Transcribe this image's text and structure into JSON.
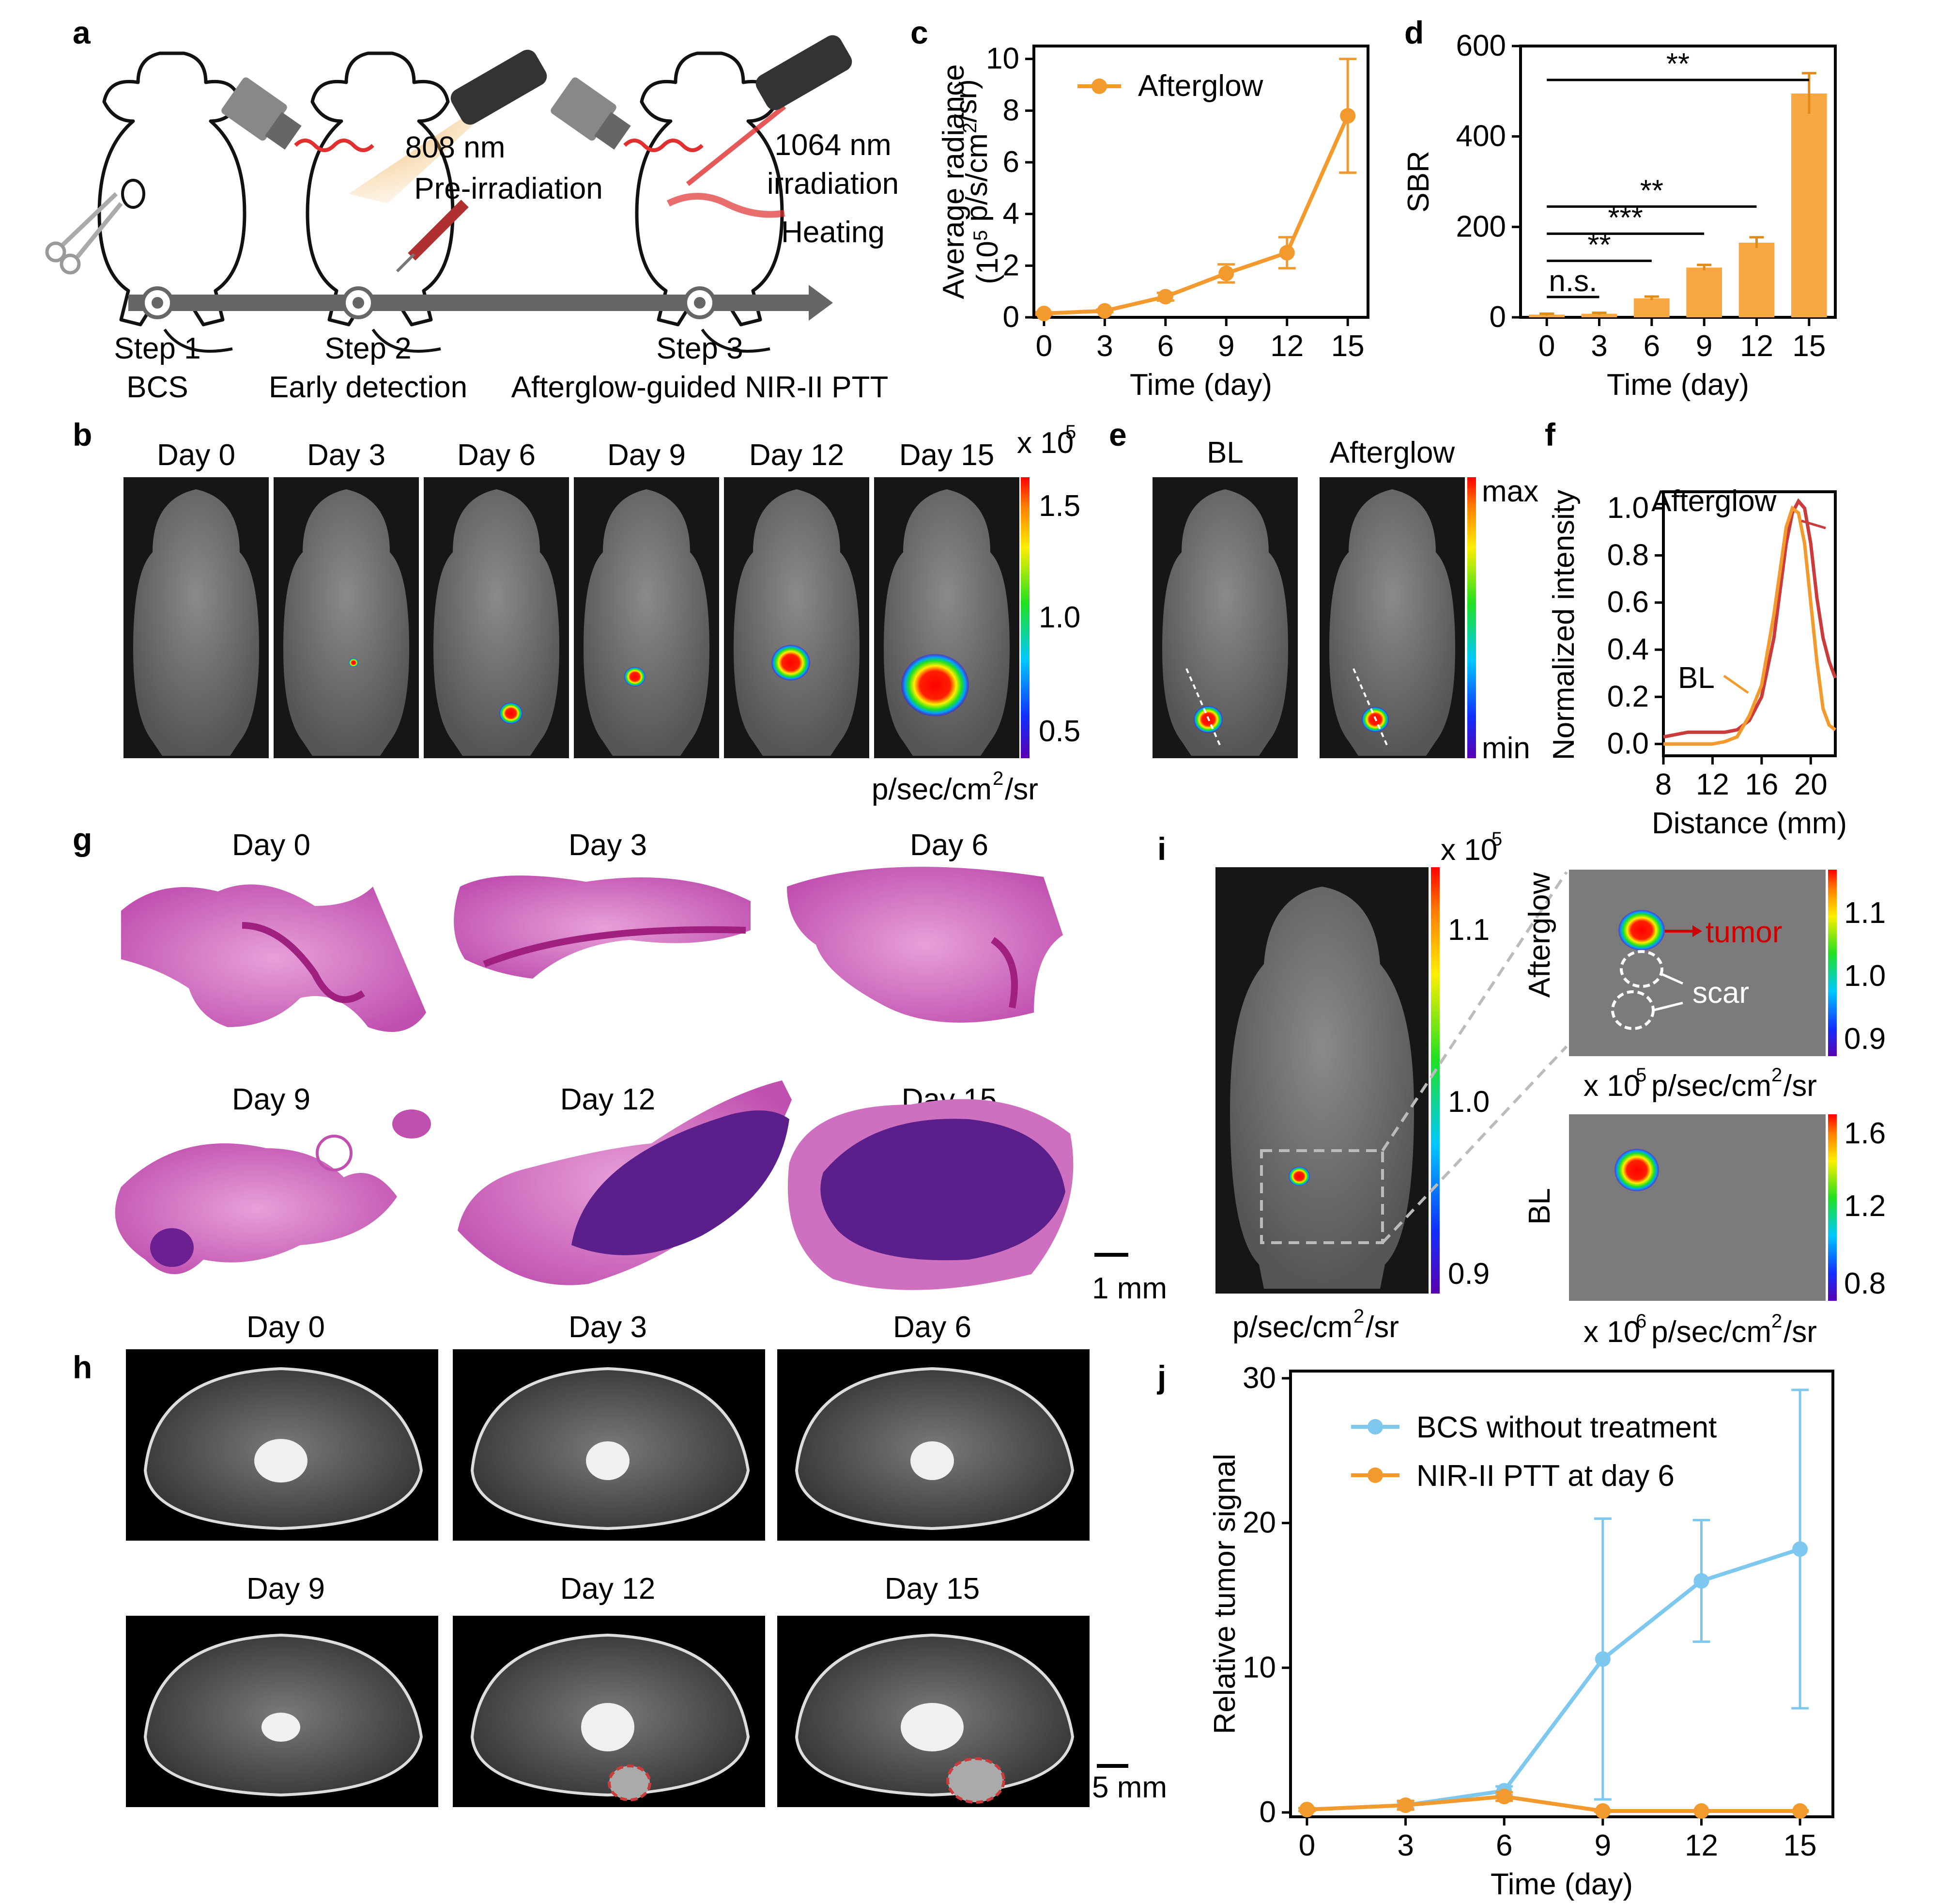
{
  "panels": {
    "a": {
      "label": "a",
      "beam_808": "808 nm",
      "beam_808_sub": "Pre-irradiation",
      "beam_1064": "1064 nm",
      "beam_1064_sub": "irradiation",
      "heating": "Heating",
      "steps": [
        {
          "title": "Step 1",
          "sub": "BCS"
        },
        {
          "title": "Step 2",
          "sub": "Early detection"
        },
        {
          "title": "Step 3",
          "sub": "Afterglow-guided NIR-II PTT"
        }
      ]
    },
    "b": {
      "label": "b",
      "days": [
        "Day 0",
        "Day 3",
        "Day 6",
        "Day 9",
        "Day 12",
        "Day 15"
      ],
      "scale_title": "x 10",
      "scale_exp": "5",
      "scale_ticks": [
        "1.5",
        "1.0",
        "0.5"
      ],
      "unit_main": "p/sec/cm",
      "unit_sup": "2",
      "unit_tail": "/sr"
    },
    "e": {
      "label": "e",
      "titles": [
        "BL",
        "Afterglow"
      ],
      "max": "max",
      "min": "min"
    },
    "g": {
      "label": "g",
      "days": [
        "Day 0",
        "Day 3",
        "Day 6",
        "Day 9",
        "Day 12",
        "Day 15"
      ],
      "scale": "1 mm"
    },
    "h": {
      "label": "h",
      "days": [
        "Day 0",
        "Day 3",
        "Day 6",
        "Day 9",
        "Day 12",
        "Day 15"
      ],
      "scale": "5 mm"
    },
    "i": {
      "label": "i",
      "scale_title": "x 10",
      "scale_exp": "5",
      "main_ticks": [
        "1.1",
        "1.0",
        "0.9"
      ],
      "unit_main": "p/sec/cm",
      "unit_sup": "2",
      "unit_tail": "/sr",
      "afterglow_label": "Afterglow",
      "bl_label": "BL",
      "afterglow_ticks": [
        "1.1",
        "1.0",
        "0.9"
      ],
      "bl_ticks": [
        "1.6",
        "1.2",
        "0.8"
      ],
      "tumor": "tumor",
      "scar": "scar",
      "afterglow_unit_pre": "x 10",
      "afterglow_unit_exp": "5",
      "bl_unit_pre": "x 10",
      "bl_unit_exp": "6"
    }
  },
  "colors": {
    "orange": "#f39a2e",
    "blue": "#7ec8ef",
    "red": "#cc3b3b"
  },
  "chart_data": [
    {
      "panel": "c",
      "type": "line",
      "x": [
        0,
        3,
        6,
        9,
        12,
        15
      ],
      "series": [
        {
          "name": "Afterglow",
          "values": [
            0.15,
            0.25,
            0.8,
            1.7,
            2.5,
            7.8
          ],
          "errors": [
            0.05,
            0.05,
            0.15,
            0.35,
            0.6,
            2.2
          ]
        }
      ],
      "xlabel": "Time (day)",
      "ylabel_line1": "Average radiance",
      "ylabel_line2_pre": "(10",
      "ylabel_line2_exp": "5",
      "ylabel_line2_mid": " p/s/cm",
      "ylabel_line2_exp2": "2",
      "ylabel_line2_post": "/sr)",
      "xticks": [
        "0",
        "3",
        "6",
        "9",
        "12",
        "15"
      ],
      "yticks": [
        "0",
        "2",
        "4",
        "6",
        "8",
        "10"
      ],
      "xlim": [
        -0.5,
        16
      ],
      "ylim": [
        0,
        10.5
      ],
      "legend": "top-left"
    },
    {
      "panel": "d",
      "type": "bar",
      "categories": [
        "0",
        "3",
        "6",
        "9",
        "12",
        "15"
      ],
      "values": [
        6,
        8,
        42,
        110,
        165,
        495
      ],
      "errors": [
        2,
        2,
        4,
        6,
        12,
        45
      ],
      "xlabel": "Time (day)",
      "ylabel": "SBR",
      "yticks": [
        "0",
        "200",
        "400",
        "600"
      ],
      "ylim": [
        0,
        600
      ],
      "significance": [
        {
          "from": "0",
          "to": "15",
          "text": "**"
        },
        {
          "from": "0",
          "to": "12",
          "text": "**"
        },
        {
          "from": "0",
          "to": "9",
          "text": "***"
        },
        {
          "from": "0",
          "to": "6",
          "text": "**"
        },
        {
          "from": "0",
          "to": "3",
          "text": "n.s."
        }
      ]
    },
    {
      "panel": "f",
      "type": "line",
      "xlabel": "Distance (mm)",
      "ylabel": "Normalized intensity",
      "xticks": [
        "8",
        "12",
        "16",
        "20"
      ],
      "yticks": [
        "0.0",
        "0.2",
        "0.4",
        "0.6",
        "0.8",
        "1.0"
      ],
      "xlim": [
        8,
        22
      ],
      "ylim": [
        -0.05,
        1.07
      ],
      "series": [
        {
          "name": "Afterglow",
          "x": [
            8,
            9,
            10,
            11,
            12,
            13,
            14,
            15,
            16,
            17,
            18,
            18.5,
            19,
            19.5,
            20,
            20.5,
            21,
            21.5,
            22
          ],
          "values": [
            0.03,
            0.04,
            0.05,
            0.05,
            0.05,
            0.05,
            0.06,
            0.1,
            0.2,
            0.45,
            0.85,
            0.98,
            1.03,
            1.0,
            0.85,
            0.62,
            0.45,
            0.35,
            0.28
          ]
        },
        {
          "name": "BL",
          "x": [
            8,
            9,
            10,
            11,
            12,
            13,
            14,
            15,
            16,
            17,
            18,
            18.5,
            19,
            19.5,
            20,
            20.5,
            21,
            21.5,
            22
          ],
          "values": [
            0.0,
            0.0,
            0.0,
            0.0,
            0.0,
            0.01,
            0.03,
            0.12,
            0.25,
            0.55,
            0.92,
            1.0,
            0.98,
            0.85,
            0.6,
            0.35,
            0.15,
            0.08,
            0.06
          ]
        }
      ]
    },
    {
      "panel": "j",
      "type": "line",
      "x": [
        0,
        3,
        6,
        9,
        12,
        15
      ],
      "series": [
        {
          "name": "BCS without treatment",
          "values": [
            0.2,
            0.5,
            1.5,
            10.6,
            16.0,
            18.2
          ],
          "errors": [
            0.1,
            0.2,
            0.3,
            9.7,
            4.2,
            11.0
          ]
        },
        {
          "name": "NIR-II PTT at day 6",
          "values": [
            0.2,
            0.5,
            1.1,
            0.1,
            0.1,
            0.1
          ],
          "errors": [
            0.1,
            0.3,
            0.3,
            0.05,
            0.05,
            0.05
          ]
        }
      ],
      "xlabel": "Time (day)",
      "ylabel": "Relative tumor signal",
      "xticks": [
        "0",
        "3",
        "6",
        "9",
        "12",
        "15"
      ],
      "yticks": [
        "0",
        "10",
        "20",
        "30"
      ],
      "xlim": [
        -0.5,
        16
      ],
      "ylim": [
        -0.3,
        30.5
      ],
      "legend": "top-left"
    }
  ]
}
